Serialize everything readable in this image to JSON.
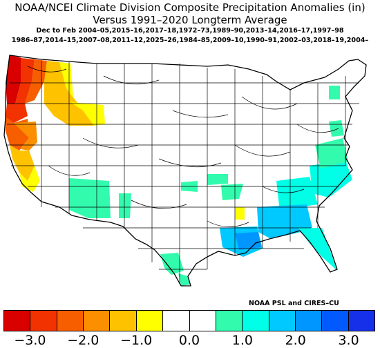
{
  "title_line1": "NOAA/NCEI Climate Division Composite Precipitation Anomalies (in)",
  "title_line2": "Versus 1991–2020 Longterm Average",
  "subtitle_line1": "Dec to Feb  2004–05,2015–16,2017–18,1972–73,1989–90,2013–14,2016–17,1997–98",
  "subtitle_line2": "1986–87,2014–15,2007–08,2011–12,2025–26,1984–85,2009–10,1990–91,2002–03,2018–19,2004–",
  "credit": "NOAA PSL and CIRES–CU",
  "colorbar": {
    "colors": [
      "#d90000",
      "#f23200",
      "#f65e00",
      "#fb8f00",
      "#fec200",
      "#ffff00",
      "#ffffff",
      "#ffffff",
      "#32fbae",
      "#00ffe6",
      "#00c9ff",
      "#0096ff",
      "#005aff",
      "#1530e8"
    ],
    "ticks": [
      "−3.0",
      "−2.0",
      "−1.0",
      "0.0",
      "1.0",
      "2.0",
      "3.0"
    ]
  }
}
